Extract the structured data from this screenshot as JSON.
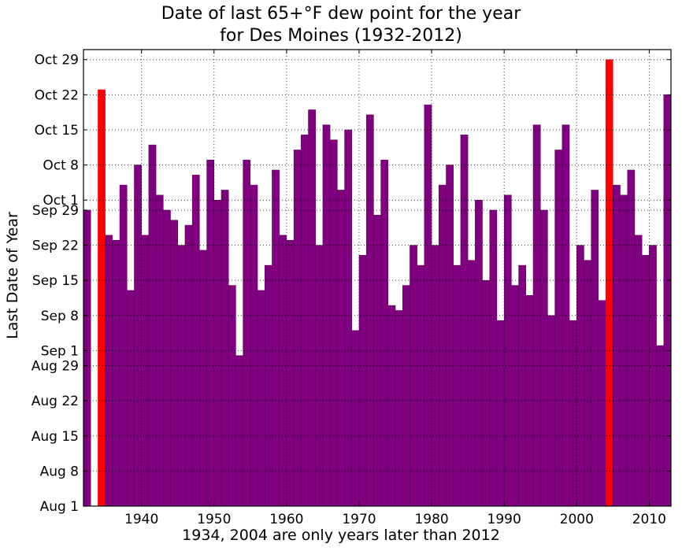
{
  "chart_data": {
    "type": "bar",
    "title": "Date of last 65+°F dew point for the year",
    "subtitle": "for Des Moines (1932-2012)",
    "xlabel": "1934, 2004 are only years later than 2012",
    "ylabel": "Last Date of Year",
    "xlim": [
      1932,
      2013
    ],
    "x_ticks": [
      1940,
      1950,
      1960,
      1970,
      1980,
      1990,
      2000,
      2010
    ],
    "ylim": [
      "Aug 1",
      "Oct 31"
    ],
    "y_ticks": [
      "Aug 1",
      "Aug 8",
      "Aug 15",
      "Aug 22",
      "Aug 29",
      "Sep 1",
      "Sep 8",
      "Sep 15",
      "Sep 22",
      "Sep 29",
      "Oct 1",
      "Oct 8",
      "Oct 15",
      "Oct 22",
      "Oct 29"
    ],
    "grid": true,
    "bar_color": "#800080",
    "highlight_color": "#ff0000",
    "highlight_years": [
      1934,
      2004
    ],
    "years": [
      1932,
      1933,
      1934,
      1935,
      1936,
      1937,
      1938,
      1939,
      1940,
      1941,
      1942,
      1943,
      1944,
      1945,
      1946,
      1947,
      1948,
      1949,
      1950,
      1951,
      1952,
      1953,
      1954,
      1955,
      1956,
      1957,
      1958,
      1959,
      1960,
      1961,
      1962,
      1963,
      1964,
      1965,
      1966,
      1967,
      1968,
      1969,
      1970,
      1971,
      1972,
      1973,
      1974,
      1975,
      1976,
      1977,
      1978,
      1979,
      1980,
      1981,
      1982,
      1983,
      1984,
      1985,
      1986,
      1987,
      1988,
      1989,
      1990,
      1991,
      1992,
      1993,
      1994,
      1995,
      1996,
      1997,
      1998,
      1999,
      2000,
      2001,
      2002,
      2003,
      2004,
      2005,
      2006,
      2007,
      2008,
      2009,
      2010,
      2011,
      2012
    ],
    "values": [
      "Sep 29",
      "",
      "Oct 23",
      "Sep 24",
      "Sep 23",
      "Oct 4",
      "Sep 13",
      "Oct 8",
      "Sep 24",
      "Oct 12",
      "Oct 2",
      "Sep 29",
      "Sep 27",
      "Sep 22",
      "Sep 26",
      "Oct 6",
      "Sep 21",
      "Oct 9",
      "Oct 1",
      "Oct 3",
      "Sep 14",
      "Aug 31",
      "Oct 9",
      "Oct 4",
      "Sep 13",
      "Sep 18",
      "Oct 7",
      "Sep 24",
      "Sep 23",
      "Oct 11",
      "Oct 14",
      "Oct 19",
      "Sep 22",
      "Oct 16",
      "Oct 13",
      "Oct 3",
      "Oct 15",
      "Sep 5",
      "Sep 20",
      "Oct 18",
      "Sep 28",
      "Oct 9",
      "Sep 10",
      "Sep 9",
      "Sep 14",
      "Sep 22",
      "Sep 18",
      "Oct 20",
      "Sep 22",
      "Oct 4",
      "Oct 8",
      "Sep 18",
      "Oct 14",
      "Sep 19",
      "Oct 1",
      "Sep 15",
      "Sep 29",
      "Sep 7",
      "Oct 2",
      "Sep 14",
      "Sep 18",
      "Sep 12",
      "Oct 16",
      "Sep 29",
      "Sep 8",
      "Oct 11",
      "Oct 16",
      "Sep 7",
      "Sep 22",
      "Sep 19",
      "Oct 3",
      "Sep 11",
      "Oct 29",
      "Oct 4",
      "Oct 2",
      "Oct 7",
      "Sep 24",
      "Sep 20",
      "Sep 22",
      "Sep 2",
      "Oct 22"
    ]
  }
}
